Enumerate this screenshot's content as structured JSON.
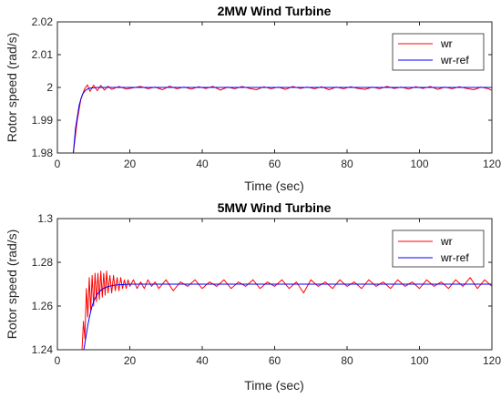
{
  "chart_data": [
    {
      "type": "line",
      "title": "2MW Wind Turbine",
      "xlabel": "Time (sec)",
      "ylabel": "Rotor speed (rad/s)",
      "xlim": [
        0,
        120
      ],
      "ylim": [
        1.98,
        2.02
      ],
      "xticks": [
        "0",
        "20",
        "40",
        "60",
        "80",
        "100",
        "120"
      ],
      "yticks": [
        "1.98",
        "1.99",
        "2",
        "2.01",
        "2.02"
      ],
      "grid": false,
      "legend": "top-right",
      "series": [
        {
          "name": "wr",
          "color": "#ff0000",
          "x": [
            4.4,
            5.5,
            6.5,
            7.5,
            8.3,
            9,
            10,
            11,
            12,
            13,
            14,
            15,
            17,
            19,
            21,
            23,
            25,
            27,
            29,
            31,
            33,
            35,
            37,
            39,
            41,
            43,
            45,
            47,
            49,
            51,
            53,
            55,
            57,
            59,
            61,
            63,
            65,
            67,
            69,
            71,
            73,
            75,
            77,
            79,
            81,
            83,
            85,
            87,
            89,
            91,
            93,
            95,
            97,
            99,
            101,
            103,
            105,
            107,
            109,
            111,
            113,
            115,
            117,
            119,
            120
          ],
          "values": [
            1.98,
            1.99,
            1.9965,
            1.9995,
            2.0008,
            1.9988,
            2.0007,
            1.999,
            2.0006,
            1.9992,
            2.0004,
            1.9994,
            2.0003,
            1.9995,
            1.9999,
            2.0003,
            1.9996,
            2.0001,
            1.9993,
            2.0004,
            1.9996,
            2.0001,
            1.9995,
            2.0002,
            1.9997,
            2.0003,
            1.9992,
            2.0001,
            1.9996,
            2.0003,
            1.9997,
            1.9993,
            2.0002,
            1.9996,
            2.0001,
            1.9994,
            2.0003,
            1.9997,
            2.0001,
            1.9996,
            2.0002,
            1.9993,
            2.0001,
            1.9996,
            2.0002,
            1.9997,
            1.9994,
            2.0001,
            1.9996,
            2.0003,
            1.9997,
            2.0001,
            1.9995,
            2.0002,
            1.9997,
            2.0003,
            1.9994,
            2.0001,
            1.9996,
            2.0002,
            1.9997,
            1.9993,
            2.0001,
            1.9996,
            1.9991
          ]
        },
        {
          "name": "wr-ref",
          "color": "#0000ff",
          "x": [
            4.4,
            5,
            5.5,
            6,
            6.5,
            7,
            7.5,
            8,
            8.5,
            9,
            10,
            11,
            12,
            14,
            16,
            20,
            30,
            60,
            90,
            120
          ],
          "values": [
            1.98,
            1.9875,
            1.991,
            1.9945,
            1.9965,
            1.998,
            1.9988,
            1.9993,
            1.9996,
            1.9998,
            1.9999,
            2.0,
            2.0,
            2.0,
            2.0,
            2.0,
            2.0,
            2.0,
            2.0,
            2.0
          ]
        }
      ]
    },
    {
      "type": "line",
      "title": "5MW Wind Turbine",
      "xlabel": "Time (sec)",
      "ylabel": "Rotor speed (rad/s)",
      "xlim": [
        0,
        120
      ],
      "ylim": [
        1.24,
        1.3
      ],
      "xticks": [
        "0",
        "20",
        "40",
        "60",
        "80",
        "100",
        "120"
      ],
      "yticks": [
        "1.24",
        "1.26",
        "1.28",
        "1.3"
      ],
      "grid": false,
      "legend": "top-right",
      "series": [
        {
          "name": "wr",
          "color": "#ff0000",
          "x": [
            6.8,
            7.2,
            7.6,
            8.0,
            8.4,
            8.8,
            9.2,
            9.6,
            10.0,
            10.4,
            10.8,
            11.2,
            11.6,
            12.0,
            12.4,
            12.8,
            13.2,
            13.6,
            14.0,
            14.5,
            15.0,
            15.5,
            16.0,
            16.5,
            17.0,
            17.5,
            18.0,
            18.5,
            19.0,
            19.5,
            20.0,
            21,
            22,
            23,
            24,
            25,
            26,
            27,
            28,
            30,
            32,
            34,
            36,
            38,
            40,
            42,
            44,
            46,
            48,
            50,
            52,
            54,
            56,
            58,
            60,
            62,
            64,
            66,
            68,
            70,
            72,
            74,
            76,
            78,
            80,
            82,
            84,
            86,
            88,
            90,
            92,
            94,
            96,
            98,
            100,
            102,
            104,
            106,
            108,
            110,
            112,
            114,
            116,
            118,
            120
          ],
          "values": [
            1.24,
            1.253,
            1.245,
            1.268,
            1.255,
            1.273,
            1.258,
            1.274,
            1.26,
            1.275,
            1.262,
            1.275,
            1.263,
            1.276,
            1.264,
            1.275,
            1.265,
            1.276,
            1.266,
            1.274,
            1.266,
            1.274,
            1.267,
            1.273,
            1.267,
            1.273,
            1.268,
            1.272,
            1.268,
            1.272,
            1.269,
            1.272,
            1.268,
            1.271,
            1.268,
            1.272,
            1.269,
            1.271,
            1.268,
            1.272,
            1.267,
            1.271,
            1.269,
            1.272,
            1.268,
            1.271,
            1.269,
            1.272,
            1.268,
            1.271,
            1.269,
            1.272,
            1.268,
            1.271,
            1.269,
            1.272,
            1.268,
            1.271,
            1.266,
            1.272,
            1.269,
            1.271,
            1.268,
            1.272,
            1.269,
            1.271,
            1.268,
            1.272,
            1.269,
            1.271,
            1.268,
            1.272,
            1.269,
            1.271,
            1.268,
            1.272,
            1.269,
            1.271,
            1.268,
            1.272,
            1.269,
            1.273,
            1.268,
            1.272,
            1.269
          ]
        },
        {
          "name": "wr-ref",
          "color": "#0000ff",
          "x": [
            7.3,
            8,
            8.5,
            9,
            9.5,
            10,
            10.5,
            11,
            12,
            13,
            14,
            15,
            16,
            18,
            20,
            25,
            30,
            60,
            90,
            120
          ],
          "values": [
            1.24,
            1.247,
            1.252,
            1.256,
            1.2595,
            1.262,
            1.2638,
            1.2653,
            1.2672,
            1.2683,
            1.2689,
            1.2693,
            1.2696,
            1.2698,
            1.27,
            1.27,
            1.27,
            1.27,
            1.27,
            1.27
          ]
        }
      ]
    }
  ]
}
